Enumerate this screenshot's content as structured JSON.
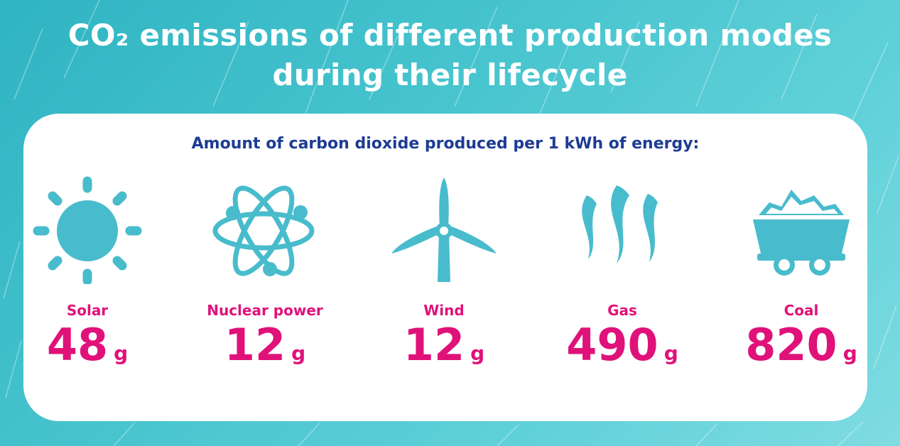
{
  "title": {
    "line1": "CO₂ emissions of different production modes",
    "line2": "during their lifecycle"
  },
  "subtitle": "Amount of carbon dioxide produced per 1 kWh of energy:",
  "colors": {
    "accent": "#e0127a",
    "icon": "#48bccc",
    "heading": "#1d3c93",
    "background": "#47c4ce"
  },
  "sources": [
    {
      "icon": "sun-icon",
      "label": "Solar",
      "value": "48",
      "unit": "g"
    },
    {
      "icon": "atom-icon",
      "label": "Nuclear power",
      "value": "12",
      "unit": "g"
    },
    {
      "icon": "wind-turbine-icon",
      "label": "Wind",
      "value": "12",
      "unit": "g"
    },
    {
      "icon": "gas-flames-icon",
      "label": "Gas",
      "value": "490",
      "unit": "g"
    },
    {
      "icon": "coal-cart-icon",
      "label": "Coal",
      "value": "820",
      "unit": "g"
    }
  ]
}
